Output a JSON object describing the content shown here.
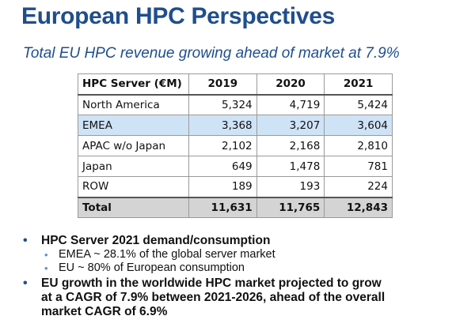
{
  "slide": {
    "title": "European HPC Perspectives",
    "subtitle": "Total EU HPC revenue growing ahead of market at 7.9%"
  },
  "table": {
    "headers": [
      "HPC Server (€M)",
      "2019",
      "2020",
      "2021"
    ],
    "rows": [
      {
        "label": "North America",
        "values": [
          "5,324",
          "4,719",
          "5,424"
        ]
      },
      {
        "label": "EMEA",
        "values": [
          "3,368",
          "3,207",
          "3,604"
        ]
      },
      {
        "label": "APAC w/o Japan",
        "values": [
          "2,102",
          "2,168",
          "2,810"
        ]
      },
      {
        "label": "Japan",
        "values": [
          "649",
          "1,478",
          "781"
        ]
      },
      {
        "label": "ROW",
        "values": [
          "189",
          "193",
          "224"
        ]
      }
    ],
    "total": {
      "label": "Total",
      "values": [
        "11,631",
        "11,765",
        "12,843"
      ]
    },
    "highlight_color": "#cfe3f7",
    "total_color": "#d4d4d4"
  },
  "bullets": [
    {
      "text": "HPC Server 2021 demand/consumption",
      "sub": [
        "EMEA ~ 28.1% of the global server market",
        "EU ~ 80% of European consumption"
      ]
    },
    {
      "lines": [
        "EU growth in the worldwide HPC market projected to grow",
        "at a CAGR of 7.9% between 2021-2026, ahead of the overall",
        "market CAGR of 6.9%"
      ]
    }
  ],
  "colors": {
    "accent": "#1f4e8c",
    "sub_bullet": "#5b8fd0"
  }
}
